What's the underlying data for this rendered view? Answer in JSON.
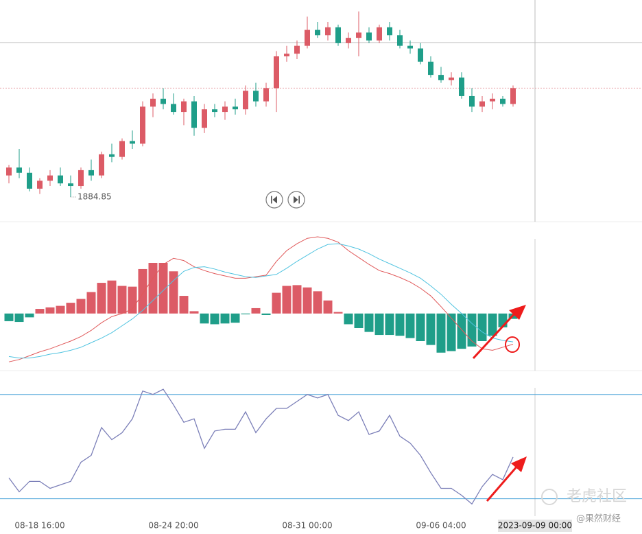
{
  "chart_data": [
    {
      "type": "candlestick",
      "up_color": "#dc5b66",
      "down_color": "#1f9e89",
      "ylim": [
        1876.3,
        1959.3
      ],
      "crosshair": {
        "price": 1943.2
      },
      "candles": [
        [
          1893,
          1897,
          1890,
          1896
        ],
        [
          1896,
          1903,
          1892,
          1894
        ],
        [
          1894,
          1896,
          1887,
          1888
        ],
        [
          1888,
          1892,
          1886,
          1891
        ],
        [
          1891,
          1895,
          1889,
          1893
        ],
        [
          1893,
          1896,
          1889,
          1890
        ],
        [
          1890,
          1893,
          1884.85,
          1889
        ],
        [
          1889,
          1896,
          1888,
          1895
        ],
        [
          1895,
          1899,
          1891,
          1893
        ],
        [
          1893,
          1902,
          1892,
          1901
        ],
        [
          1901,
          1905,
          1898,
          1900
        ],
        [
          1900,
          1907,
          1899,
          1906
        ],
        [
          1906,
          1910,
          1903,
          1905
        ],
        [
          1905,
          1921,
          1904,
          1919
        ],
        [
          1919,
          1924,
          1915,
          1922
        ],
        [
          1922,
          1926,
          1918,
          1920
        ],
        [
          1920,
          1924,
          1916,
          1917
        ],
        [
          1917,
          1922,
          1912,
          1921
        ],
        [
          1921,
          1923,
          1908,
          1911
        ],
        [
          1911,
          1920,
          1909,
          1918
        ],
        [
          1918,
          1920,
          1915,
          1917
        ],
        [
          1917,
          1921,
          1914,
          1919
        ],
        [
          1919,
          1922,
          1916,
          1918
        ],
        [
          1918,
          1927,
          1916,
          1925
        ],
        [
          1925,
          1928,
          1919,
          1921
        ],
        [
          1921,
          1928,
          1919,
          1926
        ],
        [
          1926,
          1940,
          1917,
          1938
        ],
        [
          1938,
          1942,
          1936,
          1939
        ],
        [
          1939,
          1944,
          1937,
          1942
        ],
        [
          1942,
          1953,
          1941,
          1948
        ],
        [
          1948,
          1951,
          1945,
          1946
        ],
        [
          1946,
          1951,
          1944,
          1949
        ],
        [
          1949,
          1950,
          1942,
          1943
        ],
        [
          1943,
          1947,
          1941,
          1945
        ],
        [
          1945,
          1955,
          1938,
          1947
        ],
        [
          1947,
          1949,
          1943,
          1944
        ],
        [
          1944,
          1950,
          1943,
          1949
        ],
        [
          1949,
          1951,
          1944,
          1946
        ],
        [
          1946,
          1948,
          1941,
          1942
        ],
        [
          1942,
          1944,
          1939,
          1941
        ],
        [
          1941,
          1943,
          1935,
          1936
        ],
        [
          1936,
          1938,
          1930,
          1931
        ],
        [
          1931,
          1934,
          1928,
          1929
        ],
        [
          1929,
          1932,
          1927,
          1930
        ],
        [
          1930,
          1932,
          1922,
          1923
        ],
        [
          1923,
          1926,
          1917,
          1919
        ],
        [
          1919,
          1923,
          1917,
          1921
        ],
        [
          1921,
          1924,
          1918,
          1922
        ],
        [
          1922,
          1923,
          1919,
          1920
        ],
        [
          1920,
          1927,
          1919,
          1926
        ]
      ]
    },
    {
      "type": "macd",
      "up_color": "#dc5b66",
      "down_color": "#1f9e89",
      "ylim": [
        -7,
        10
      ],
      "histogram": [
        -1.0,
        -1.1,
        -0.5,
        0.6,
        0.8,
        1.0,
        1.4,
        1.9,
        2.8,
        4.0,
        4.3,
        3.6,
        3.5,
        5.8,
        6.6,
        6.6,
        5.5,
        2.3,
        0.3,
        -1.3,
        -1.4,
        -1.3,
        -1.2,
        -0.1,
        0.7,
        -0.2,
        2.7,
        3.6,
        3.7,
        3.4,
        2.9,
        1.7,
        0.2,
        -1.4,
        -1.9,
        -2.4,
        -2.8,
        -2.8,
        -2.9,
        -3.2,
        -3.6,
        -4.1,
        -5.1,
        -4.9,
        -4.6,
        -4.3,
        -3.6,
        -2.9,
        -1.8,
        -0.7
      ],
      "series": [
        {
          "color": "#e0595a",
          "values": [
            -6.3,
            -6.0,
            -5.5,
            -5.0,
            -4.6,
            -4.1,
            -3.6,
            -3.0,
            -2.2,
            -1.2,
            -0.4,
            0.0,
            0.6,
            2.6,
            4.6,
            6.4,
            7.2,
            6.9,
            6.1,
            5.6,
            5.2,
            4.9,
            4.6,
            4.6,
            4.8,
            5.0,
            6.8,
            8.2,
            9.1,
            9.8,
            10.0,
            9.8,
            9.3,
            8.2,
            7.3,
            6.4,
            5.6,
            5.2,
            4.7,
            4.1,
            3.3,
            2.3,
            0.9,
            -0.6,
            -2.1,
            -3.6,
            -4.6,
            -4.8,
            -4.4,
            -4.0
          ]
        },
        {
          "color": "#4fc3e0",
          "values": [
            -5.6,
            -5.8,
            -5.8,
            -5.6,
            -5.3,
            -5.1,
            -4.8,
            -4.4,
            -3.8,
            -3.2,
            -2.5,
            -1.6,
            -0.7,
            0.4,
            1.7,
            3.0,
            4.3,
            5.5,
            6.0,
            6.1,
            5.8,
            5.4,
            5.1,
            4.8,
            4.7,
            4.9,
            5.1,
            5.9,
            6.8,
            7.6,
            8.4,
            9.0,
            9.1,
            8.8,
            8.4,
            7.8,
            7.1,
            6.5,
            5.9,
            5.3,
            4.6,
            3.6,
            2.5,
            1.2,
            0.0,
            -1.3,
            -2.4,
            -3.2,
            -3.5,
            -3.7
          ]
        }
      ]
    },
    {
      "type": "line",
      "color": "#7b7fb8",
      "level_color": "#4aa3d8",
      "ylim": [
        10,
        90
      ],
      "levels": [
        80,
        20
      ],
      "values": [
        32,
        24,
        30,
        30,
        26,
        28,
        30,
        41,
        45,
        61,
        54,
        58,
        66,
        82,
        80,
        83,
        74,
        64,
        66,
        49,
        59,
        60,
        60,
        70,
        58,
        66,
        72,
        72,
        76,
        80,
        78,
        80,
        68,
        65,
        70,
        57,
        59,
        68,
        56,
        52,
        45,
        35,
        26,
        26,
        22,
        17,
        27,
        34,
        31,
        44
      ],
      "xticks": [
        {
          "value": 3,
          "label": "08-18 16:00"
        },
        {
          "value": 16,
          "label": "08-24 20:00"
        },
        {
          "value": 29,
          "label": "08-31 00:00"
        },
        {
          "value": 42,
          "label": "09-06 04:00"
        }
      ],
      "crosshair_label": "2023-09-09 00:00"
    }
  ],
  "watermark": {
    "brand": "老虎社区",
    "author": "@果然财经"
  }
}
